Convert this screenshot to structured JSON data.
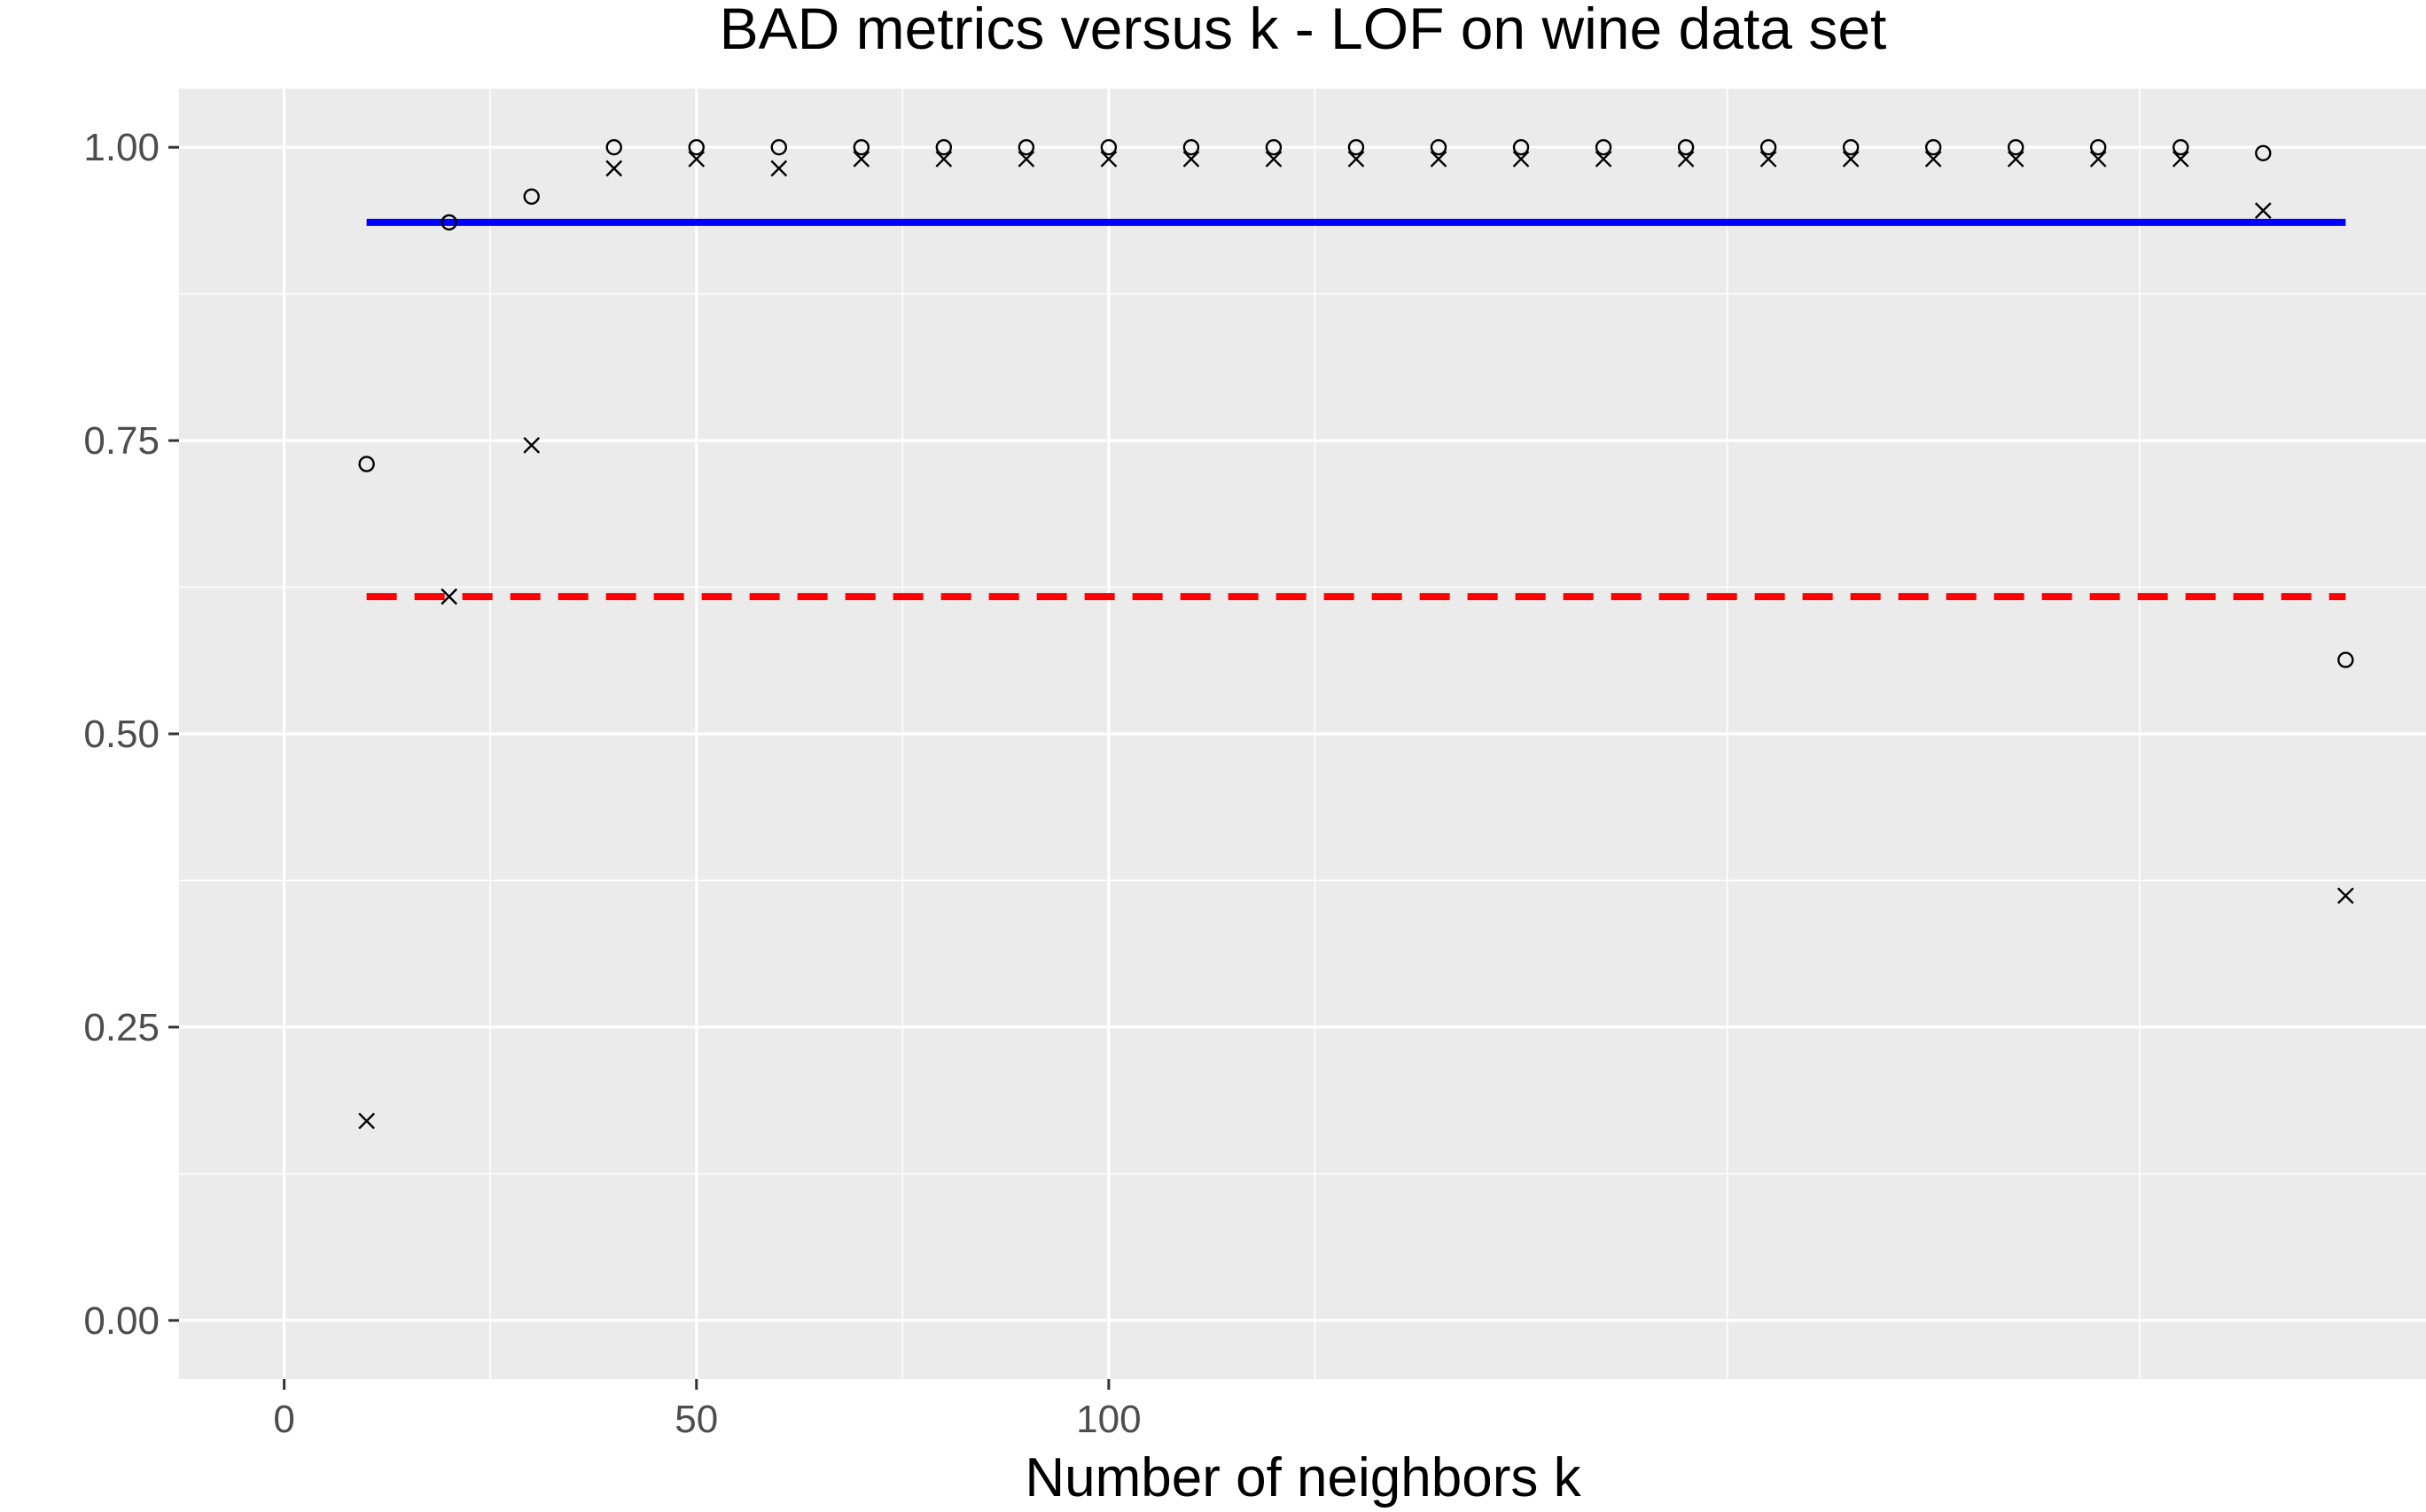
{
  "chart_data": {
    "type": "scatter",
    "title": "BAD metrics versus k - LOF on wine data set",
    "xlabel": "Number of neighbors k",
    "ylabel": "",
    "xlim": [
      -12.75,
      259.75
    ],
    "ylim": [
      -0.05,
      1.05
    ],
    "x_ticks": [
      0,
      50,
      100
    ],
    "x_tick_labels": [
      "0",
      "50",
      "100"
    ],
    "y_ticks": [
      0,
      0.25,
      0.5,
      0.75,
      1.0
    ],
    "y_tick_labels": [
      "0.00",
      "0.25",
      "0.50",
      "0.75",
      "1.00"
    ],
    "grid": true,
    "legend": "none",
    "series": [
      {
        "marker": "circle",
        "x": [
          10,
          20,
          30,
          40,
          50,
          60,
          70,
          80,
          90,
          100,
          110,
          120,
          130,
          140,
          150,
          160,
          170,
          180,
          190,
          200,
          210,
          220,
          230,
          240,
          250
        ],
        "y": [
          0.73,
          0.936,
          0.958,
          1.0,
          1.0,
          1.0,
          1.0,
          1.0,
          1.0,
          1.0,
          1.0,
          1.0,
          1.0,
          1.0,
          1.0,
          1.0,
          1.0,
          1.0,
          1.0,
          1.0,
          1.0,
          1.0,
          1.0,
          0.995,
          0.563
        ]
      },
      {
        "marker": "cross",
        "x": [
          10,
          20,
          30,
          40,
          50,
          60,
          70,
          80,
          90,
          100,
          110,
          120,
          130,
          140,
          150,
          160,
          170,
          180,
          190,
          200,
          210,
          220,
          230,
          240,
          250
        ],
        "y": [
          0.17,
          0.617,
          0.746,
          0.982,
          0.99,
          0.982,
          0.99,
          0.99,
          0.99,
          0.99,
          0.99,
          0.99,
          0.99,
          0.99,
          0.99,
          0.99,
          0.99,
          0.99,
          0.99,
          0.99,
          0.99,
          0.99,
          0.99,
          0.946,
          0.362
        ]
      }
    ],
    "reference_lines": [
      {
        "y": 0.936,
        "x_from": 10,
        "x_to": 250,
        "color": "#0000ff",
        "style": "solid"
      },
      {
        "y": 0.617,
        "x_from": 10,
        "x_to": 250,
        "color": "#ff0000",
        "style": "dashed"
      }
    ]
  }
}
